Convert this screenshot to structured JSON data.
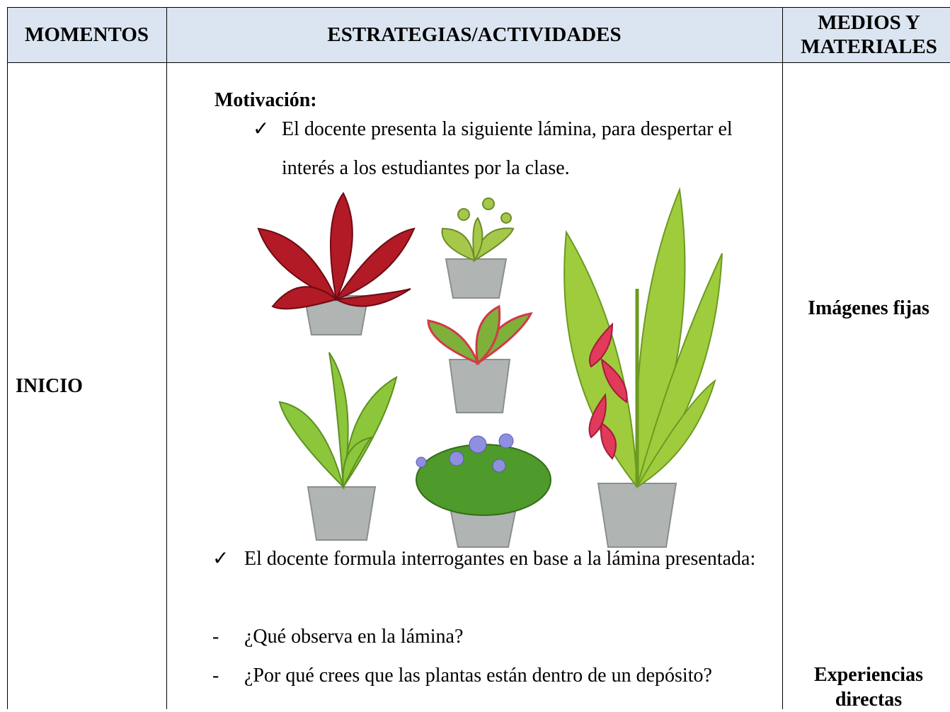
{
  "table": {
    "header": [
      "MOMENTOS",
      "ESTRATEGIAS/ACTIVIDADES",
      "MEDIOS Y MATERIALES"
    ],
    "rows": [
      {
        "moment": "INICIO",
        "activities": {
          "heading": "Motivación:",
          "items": [
            {
              "marker": "✓",
              "text": "El docente presenta la siguiente lámina, para despertar el interés a los estudiantes por la clase."
            },
            {
              "marker": "✓",
              "text": "El docente formula interrogantes en base a la lámina presentada:"
            }
          ],
          "questions": [
            {
              "marker": "-",
              "text": "¿Qué observa en la lámina?"
            },
            {
              "marker": "-",
              "text": "¿Por qué crees que las plantas están dentro de un depósito?"
            }
          ]
        },
        "materials": [
          "Imágenes fijas",
          "Experiencias directas"
        ]
      }
    ]
  }
}
